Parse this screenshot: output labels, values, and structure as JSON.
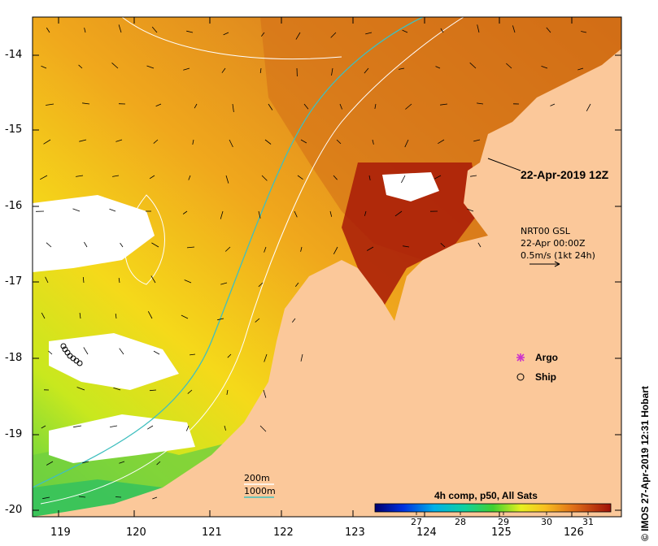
{
  "map": {
    "lon_ticks": [
      "119",
      "120",
      "121",
      "122",
      "123",
      "124",
      "125",
      "126"
    ],
    "lat_ticks": [
      "-14",
      "-15",
      "-16",
      "-17",
      "-18",
      "-19",
      "-20"
    ],
    "timestamp": "22-Apr-2019 12Z",
    "current_legend": {
      "line1": "NRT00 GSL",
      "line2": "22-Apr 00:00Z",
      "line3": "0.5m/s (1kt 24h)"
    },
    "markers": [
      {
        "label": "Argo",
        "color": "#cc33cc"
      },
      {
        "label": "Ship",
        "color": "#000000"
      }
    ],
    "isobaths": [
      {
        "label": "200m",
        "color": "#ffffff"
      },
      {
        "label": "1000m",
        "color": "#3fbfbf"
      }
    ],
    "colorbar": {
      "title": "4h comp, p50, All Sats",
      "ticks": [
        "27",
        "28",
        "29",
        "30",
        "31"
      ]
    },
    "credit": "© IMOS 27-Apr-2019 12:31 Hobart",
    "colors": {
      "land": "#fbc89a",
      "sea_warm": "#d66a10",
      "sea_hot": "#a81a08",
      "sea_mid": "#f2b21a",
      "sea_cool": "#f5e31a",
      "sea_cold": "#5fd02a",
      "no_data": "#ffffff"
    }
  }
}
